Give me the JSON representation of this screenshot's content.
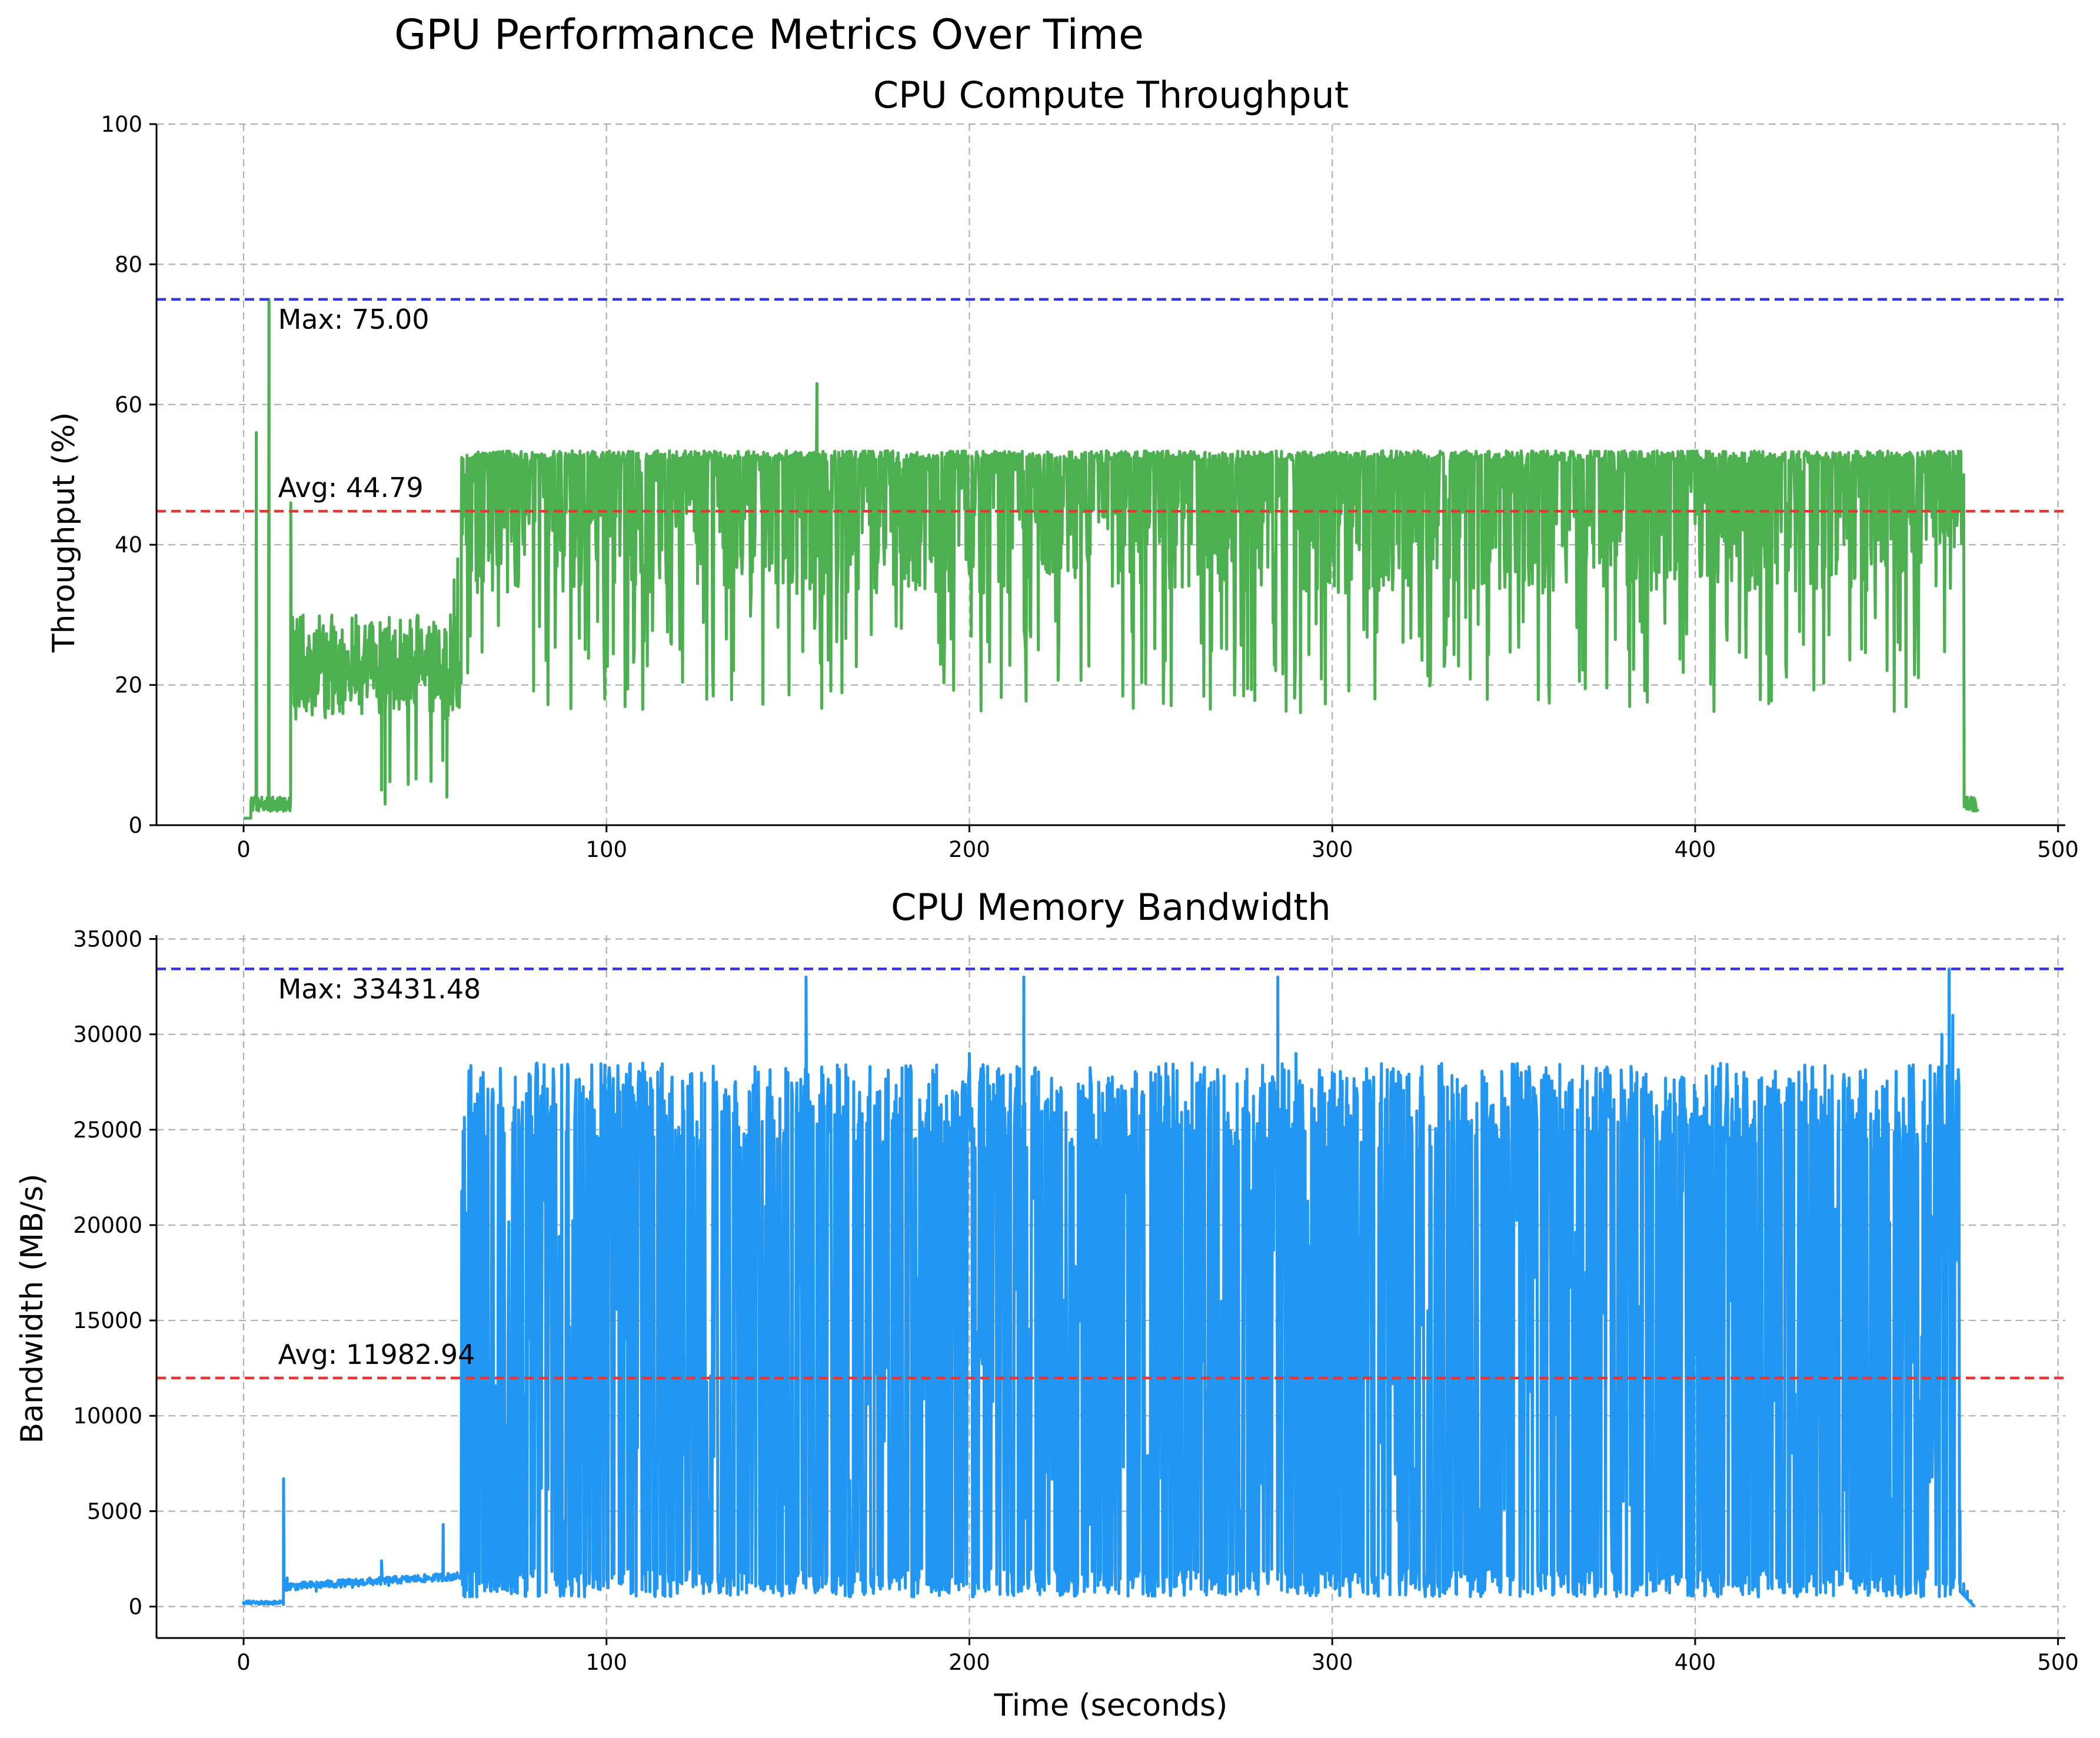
{
  "title": "GPU Performance Metrics Over Time",
  "chart_data": [
    {
      "id": "throughput",
      "type": "line",
      "title": "CPU Compute Throughput",
      "xlabel": "",
      "ylabel": "Throughput (%)",
      "xlim": [
        -24,
        502
      ],
      "ylim": [
        0,
        100
      ],
      "xticks": [
        0,
        100,
        200,
        300,
        400,
        500
      ],
      "yticks": [
        0,
        20,
        40,
        60,
        80,
        100
      ],
      "line_color": "#4caf50",
      "grid": true,
      "series": [
        {
          "name": "Throughput",
          "x": [
            0,
            1,
            2,
            3,
            3.5,
            4,
            5,
            6,
            7,
            8,
            9,
            10,
            11,
            12,
            13,
            14,
            15,
            16,
            18,
            20,
            25,
            30,
            35,
            38,
            39,
            40,
            41,
            45,
            50,
            55,
            56,
            57,
            58,
            59,
            60,
            61,
            62,
            65,
            70,
            80,
            90,
            100,
            120,
            140,
            158,
            160,
            180,
            200,
            218,
            219,
            220,
            222,
            245,
            260,
            280,
            300,
            320,
            345,
            360,
            380,
            400,
            420,
            430,
            440,
            460,
            470,
            473,
            474,
            475,
            476,
            477,
            478
          ],
          "y": [
            1,
            1,
            3,
            4,
            56,
            3,
            4,
            3,
            75,
            4,
            3,
            4,
            2,
            3,
            46,
            20,
            25,
            18,
            27,
            22,
            25,
            20,
            24,
            5,
            3,
            24,
            22,
            27,
            20,
            25,
            4,
            30,
            35,
            38,
            45,
            50,
            46,
            44,
            44,
            43,
            46,
            44,
            43,
            45,
            63,
            45,
            44,
            43,
            45,
            25,
            45,
            42,
            50,
            46,
            47,
            45,
            44,
            47,
            44,
            45,
            43,
            44,
            46,
            44,
            45,
            44,
            46,
            50,
            4,
            4,
            2,
            2
          ]
        }
      ],
      "reference_lines": [
        {
          "name": "max",
          "value": 75.0,
          "color": "#3333ee",
          "label": "Max: 75.00"
        },
        {
          "name": "avg",
          "value": 44.79,
          "color": "#ee3333",
          "label": "Avg: 44.79"
        }
      ]
    },
    {
      "id": "bandwidth",
      "type": "line",
      "title": "CPU Memory Bandwidth",
      "xlabel": "Time (seconds)",
      "ylabel": "Bandwidth (MB/s)",
      "xlim": [
        -24,
        502
      ],
      "ylim": [
        -1650,
        35200
      ],
      "xticks": [
        0,
        100,
        200,
        300,
        400,
        500
      ],
      "yticks": [
        0,
        5000,
        10000,
        15000,
        20000,
        25000,
        30000,
        35000
      ],
      "line_color": "#2196f3",
      "grid": true,
      "series": [
        {
          "name": "Bandwidth",
          "x": [
            0,
            5,
            10,
            11,
            12,
            13,
            15,
            20,
            30,
            38,
            39,
            40,
            50,
            55,
            56,
            57,
            58,
            60,
            61,
            62,
            66,
            100,
            150,
            155,
            200,
            215,
            250,
            285,
            290,
            300,
            350,
            400,
            450,
            468,
            470,
            471,
            472,
            473,
            474,
            475,
            476,
            477
          ],
          "y": [
            150,
            220,
            300,
            6700,
            1500,
            1200,
            900,
            800,
            1000,
            2400,
            1200,
            1100,
            1300,
            4300,
            1400,
            1500,
            1700,
            9000,
            18000,
            26000,
            28000,
            27000,
            28000,
            33000,
            29000,
            33000,
            28000,
            33000,
            29000,
            28000,
            27500,
            27000,
            27000,
            30000,
            33431.48,
            31000,
            26000,
            5000,
            1200,
            800,
            300,
            0
          ]
        }
      ],
      "reference_lines": [
        {
          "name": "max",
          "value": 33431.48,
          "color": "#3333ee",
          "label": "Max: 33431.48"
        },
        {
          "name": "avg",
          "value": 11982.94,
          "color": "#ee3333",
          "label": "Avg: 11982.94"
        }
      ]
    }
  ]
}
